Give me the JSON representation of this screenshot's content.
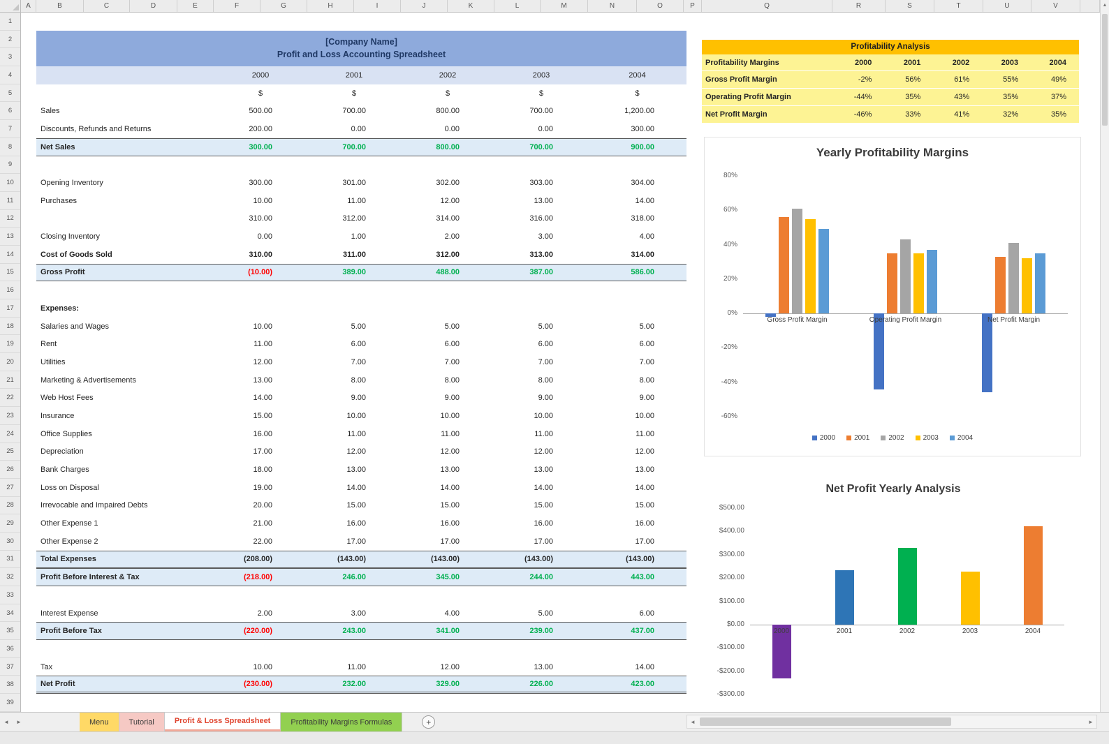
{
  "app": {
    "column_letters": [
      "A",
      "B",
      "C",
      "D",
      "E",
      "F",
      "G",
      "H",
      "I",
      "J",
      "K",
      "L",
      "M",
      "N",
      "O",
      "P",
      "Q",
      "R",
      "S",
      "T",
      "U",
      "V"
    ],
    "row_count": 39
  },
  "icons": {
    "tab_scroll_left": "◄",
    "tab_scroll_right": "►",
    "scroll_left": "◄",
    "scroll_right": "►",
    "scroll_up": "▲",
    "add_sheet": "+"
  },
  "colors": {
    "title_fill": "#8EAADC",
    "years_fill": "#D9E2F3",
    "subtotal_fill": "#DEEBF7",
    "analysis_title_fill": "#FFC000",
    "analysis_fill": "#FDF394",
    "positive": "#00B050",
    "negative": "#FF0000"
  },
  "pnl": {
    "title_line1": "[Company Name]",
    "title_line2": "Profit and Loss Accounting Spreadsheet",
    "years": [
      "2000",
      "2001",
      "2002",
      "2003",
      "2004"
    ],
    "currency_symbols": [
      "$",
      "$",
      "$",
      "$",
      "$"
    ],
    "rows": [
      {
        "label": "Sales",
        "style": "normal",
        "values": [
          "500.00",
          "700.00",
          "800.00",
          "700.00",
          "1,200.00"
        ]
      },
      {
        "label": "Discounts, Refunds and Returns",
        "style": "normal",
        "values": [
          "200.00",
          "0.00",
          "0.00",
          "0.00",
          "300.00"
        ]
      },
      {
        "label": "Net Sales",
        "style": "subtotal",
        "values": [
          "300.00",
          "700.00",
          "800.00",
          "700.00",
          "900.00"
        ]
      },
      {
        "label": "",
        "style": "blank",
        "values": [
          "",
          "",
          "",
          "",
          ""
        ]
      },
      {
        "label": "Opening Inventory",
        "style": "normal",
        "values": [
          "300.00",
          "301.00",
          "302.00",
          "303.00",
          "304.00"
        ]
      },
      {
        "label": "Purchases",
        "style": "normal",
        "values": [
          "10.00",
          "11.00",
          "12.00",
          "13.00",
          "14.00"
        ]
      },
      {
        "label": "",
        "style": "subline",
        "values": [
          "310.00",
          "312.00",
          "314.00",
          "316.00",
          "318.00"
        ]
      },
      {
        "label": "Closing Inventory",
        "style": "normal",
        "values": [
          "0.00",
          "1.00",
          "2.00",
          "3.00",
          "4.00"
        ]
      },
      {
        "label": "Cost of Goods Sold",
        "style": "bold",
        "values": [
          "310.00",
          "311.00",
          "312.00",
          "313.00",
          "314.00"
        ]
      },
      {
        "label": "Gross Profit",
        "style": "subtotal",
        "values": [
          "(10.00)",
          "389.00",
          "488.00",
          "387.00",
          "586.00"
        ]
      },
      {
        "label": "",
        "style": "blank",
        "values": [
          "",
          "",
          "",
          "",
          ""
        ]
      },
      {
        "label": "Expenses:",
        "style": "section",
        "values": [
          "",
          "",
          "",
          "",
          ""
        ]
      },
      {
        "label": "Salaries and Wages",
        "style": "normal",
        "values": [
          "10.00",
          "5.00",
          "5.00",
          "5.00",
          "5.00"
        ]
      },
      {
        "label": "Rent",
        "style": "normal",
        "values": [
          "11.00",
          "6.00",
          "6.00",
          "6.00",
          "6.00"
        ]
      },
      {
        "label": "Utilities",
        "style": "normal",
        "values": [
          "12.00",
          "7.00",
          "7.00",
          "7.00",
          "7.00"
        ]
      },
      {
        "label": "Marketing & Advertisements",
        "style": "normal",
        "values": [
          "13.00",
          "8.00",
          "8.00",
          "8.00",
          "8.00"
        ]
      },
      {
        "label": "Web Host Fees",
        "style": "normal",
        "values": [
          "14.00",
          "9.00",
          "9.00",
          "9.00",
          "9.00"
        ]
      },
      {
        "label": "Insurance",
        "style": "normal",
        "values": [
          "15.00",
          "10.00",
          "10.00",
          "10.00",
          "10.00"
        ]
      },
      {
        "label": "Office Supplies",
        "style": "normal",
        "values": [
          "16.00",
          "11.00",
          "11.00",
          "11.00",
          "11.00"
        ]
      },
      {
        "label": "Depreciation",
        "style": "normal",
        "values": [
          "17.00",
          "12.00",
          "12.00",
          "12.00",
          "12.00"
        ]
      },
      {
        "label": "Bank Charges",
        "style": "normal",
        "values": [
          "18.00",
          "13.00",
          "13.00",
          "13.00",
          "13.00"
        ]
      },
      {
        "label": "Loss on Disposal",
        "style": "normal",
        "values": [
          "19.00",
          "14.00",
          "14.00",
          "14.00",
          "14.00"
        ]
      },
      {
        "label": "Irrevocable and Impaired Debts",
        "style": "normal",
        "values": [
          "20.00",
          "15.00",
          "15.00",
          "15.00",
          "15.00"
        ]
      },
      {
        "label": "Other Expense 1",
        "style": "normal",
        "values": [
          "21.00",
          "16.00",
          "16.00",
          "16.00",
          "16.00"
        ]
      },
      {
        "label": "Other Expense 2",
        "style": "normal",
        "values": [
          "22.00",
          "17.00",
          "17.00",
          "17.00",
          "17.00"
        ]
      },
      {
        "label": "Total Expenses",
        "style": "total",
        "values": [
          "(208.00)",
          "(143.00)",
          "(143.00)",
          "(143.00)",
          "(143.00)"
        ]
      },
      {
        "label": "Profit Before Interest & Tax",
        "style": "subtotal",
        "values": [
          "(218.00)",
          "246.00",
          "345.00",
          "244.00",
          "443.00"
        ]
      },
      {
        "label": "",
        "style": "blank",
        "values": [
          "",
          "",
          "",
          "",
          ""
        ]
      },
      {
        "label": "Interest Expense",
        "style": "normal",
        "values": [
          "2.00",
          "3.00",
          "4.00",
          "5.00",
          "6.00"
        ]
      },
      {
        "label": "Profit Before Tax",
        "style": "subtotal",
        "values": [
          "(220.00)",
          "243.00",
          "341.00",
          "239.00",
          "437.00"
        ]
      },
      {
        "label": "",
        "style": "blank",
        "values": [
          "",
          "",
          "",
          "",
          ""
        ]
      },
      {
        "label": "Tax",
        "style": "normal",
        "values": [
          "10.00",
          "11.00",
          "12.00",
          "13.00",
          "14.00"
        ]
      },
      {
        "label": "Net Profit",
        "style": "subtotal",
        "values": [
          "(230.00)",
          "232.00",
          "329.00",
          "226.00",
          "423.00"
        ]
      }
    ]
  },
  "profitability": {
    "title": "Profitability Analysis",
    "header_label": "Profitability Margins",
    "years": [
      "2000",
      "2001",
      "2002",
      "2003",
      "2004"
    ],
    "rows": [
      {
        "label": "Gross Profit Margin",
        "values": [
          "-2%",
          "56%",
          "61%",
          "55%",
          "49%"
        ]
      },
      {
        "label": "Operating Profit Margin",
        "values": [
          "-44%",
          "35%",
          "43%",
          "35%",
          "37%"
        ]
      },
      {
        "label": "Net Profit Margin",
        "values": [
          "-46%",
          "33%",
          "41%",
          "32%",
          "35%"
        ]
      }
    ]
  },
  "chart_data": [
    {
      "type": "bar",
      "title": "Yearly Profitability Margins",
      "categories": [
        "Gross Profit Margin",
        "Operating Profit Margin",
        "Net Profit Margin"
      ],
      "series": [
        {
          "name": "2000",
          "color": "#4472C4",
          "values": [
            -2,
            -44,
            -46
          ]
        },
        {
          "name": "2001",
          "color": "#ED7D31",
          "values": [
            56,
            35,
            33
          ]
        },
        {
          "name": "2002",
          "color": "#A5A5A5",
          "values": [
            61,
            43,
            41
          ]
        },
        {
          "name": "2003",
          "color": "#FFC000",
          "values": [
            55,
            35,
            32
          ]
        },
        {
          "name": "2004",
          "color": "#5B9BD5",
          "values": [
            49,
            37,
            35
          ]
        }
      ],
      "ylim": [
        -60,
        80
      ],
      "ytick_step": 20,
      "ytick_format": "percent",
      "legend_position": "bottom",
      "grid": false
    },
    {
      "type": "bar",
      "title": "Net Profit Yearly Analysis",
      "categories": [
        "2000",
        "2001",
        "2002",
        "2003",
        "2004"
      ],
      "values": [
        -230,
        232,
        329,
        226,
        423
      ],
      "colors": [
        "#7030A0",
        "#2E75B6",
        "#00B050",
        "#FFC000",
        "#ED7D31"
      ],
      "ylim": [
        -300,
        500
      ],
      "ytick_step": 100,
      "ytick_format": "dollar",
      "legend_position": "none",
      "grid": false
    }
  ],
  "tabs": {
    "items": [
      {
        "label": "Menu",
        "color": "#FFD966",
        "active": false
      },
      {
        "label": "Tutorial",
        "color": "#F6C9C4",
        "active": false
      },
      {
        "label": "Profit & Loss Spreadsheet",
        "color": "#FFFFFF",
        "active": true
      },
      {
        "label": "Profitability Margins Formulas",
        "color": "#92D050",
        "active": false
      }
    ]
  }
}
